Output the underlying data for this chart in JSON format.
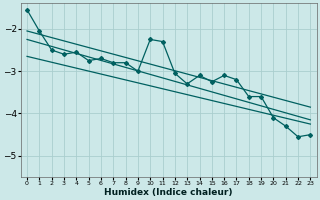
{
  "xlabel": "Humidex (Indice chaleur)",
  "bg_color": "#cce8e8",
  "line_color": "#006060",
  "grid_color": "#aacece",
  "xlim": [
    -0.5,
    23.5
  ],
  "ylim": [
    -5.5,
    -1.4
  ],
  "yticks": [
    -5,
    -4,
    -3,
    -2
  ],
  "xticks": [
    0,
    1,
    2,
    3,
    4,
    5,
    6,
    7,
    8,
    9,
    10,
    11,
    12,
    13,
    14,
    15,
    16,
    17,
    18,
    19,
    20,
    21,
    22,
    23
  ],
  "main_x": [
    0,
    1,
    2,
    3,
    4,
    5,
    6,
    7,
    8,
    9,
    10,
    11,
    12,
    13,
    14,
    15,
    16,
    17,
    18,
    19,
    20,
    21,
    22,
    23
  ],
  "main_y": [
    -1.55,
    -2.05,
    -2.5,
    -2.6,
    -2.55,
    -2.75,
    -2.7,
    -2.8,
    -2.8,
    -3.0,
    -2.25,
    -2.3,
    -3.05,
    -3.3,
    -3.1,
    -3.25,
    -3.1,
    -3.2,
    -3.6,
    -3.6,
    -4.1,
    -4.3,
    -4.55,
    -4.5
  ],
  "trend1_x": [
    0,
    23
  ],
  "trend1_y": [
    -2.05,
    -3.85
  ],
  "trend2_x": [
    0,
    23
  ],
  "trend2_y": [
    -2.25,
    -4.15
  ],
  "trend3_x": [
    0,
    23
  ],
  "trend3_y": [
    -2.65,
    -4.25
  ]
}
